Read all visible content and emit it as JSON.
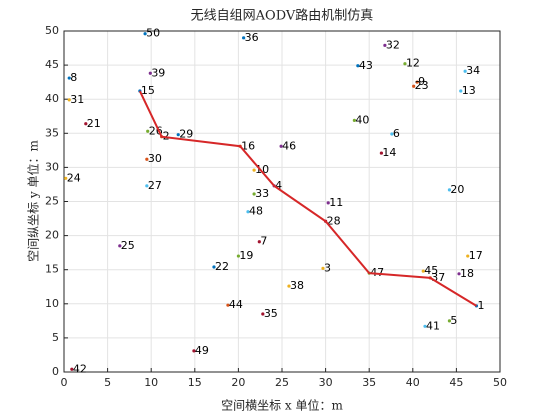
{
  "chart_data": {
    "type": "scatter",
    "title": "无线自组网AODV路由机制仿真",
    "x_label": "空间横坐标 x  单位：m",
    "y_label": "空间纵坐标 y  单位：m",
    "xlim": [
      0,
      50
    ],
    "ylim": [
      0,
      50
    ],
    "xticks": [
      0,
      5,
      10,
      15,
      20,
      25,
      30,
      35,
      40,
      45,
      50
    ],
    "yticks": [
      0,
      5,
      10,
      15,
      20,
      25,
      30,
      35,
      40,
      45,
      50
    ],
    "grid": true,
    "nodes": {
      "labels": [
        "1",
        "2",
        "3",
        "4",
        "5",
        "6",
        "7",
        "8",
        "9",
        "10",
        "11",
        "12",
        "13",
        "14",
        "15",
        "16",
        "17",
        "18",
        "19",
        "20",
        "21",
        "22",
        "23",
        "24",
        "25",
        "26",
        "27",
        "28",
        "29",
        "30",
        "31",
        "32",
        "33",
        "34",
        "35",
        "36",
        "37",
        "38",
        "39",
        "40",
        "41",
        "42",
        "43",
        "44",
        "45",
        "46",
        "47",
        "48",
        "49",
        "50"
      ],
      "x": [
        47.3,
        11.2,
        29.7,
        24.1,
        44.2,
        37.6,
        22.4,
        0.6,
        40.5,
        21.8,
        30.3,
        39.1,
        45.5,
        36.4,
        8.7,
        20.2,
        46.3,
        45.3,
        20.0,
        44.2,
        2.5,
        17.2,
        40.1,
        0.2,
        6.4,
        9.6,
        9.5,
        30.0,
        13.1,
        9.5,
        0.6,
        36.8,
        21.8,
        46.0,
        22.8,
        20.6,
        42.0,
        25.8,
        9.9,
        33.3,
        41.4,
        0.9,
        33.7,
        18.8,
        41.2,
        24.9,
        35.0,
        21.1,
        14.9,
        9.3
      ],
      "values": [
        9.7,
        34.5,
        15.2,
        27.3,
        7.5,
        34.9,
        19.1,
        43.1,
        42.5,
        29.6,
        24.8,
        45.2,
        41.2,
        32.1,
        41.2,
        33.1,
        17.0,
        14.4,
        17.0,
        26.7,
        36.4,
        15.4,
        41.9,
        28.4,
        18.5,
        35.3,
        27.3,
        22.1,
        34.8,
        31.2,
        39.9,
        47.9,
        26.1,
        44.1,
        8.5,
        49.0,
        13.8,
        12.6,
        43.8,
        36.9,
        6.7,
        0.4,
        44.9,
        9.8,
        14.8,
        33.1,
        14.5,
        23.5,
        3.1,
        49.6
      ],
      "marker_colors": [
        "#0072bd",
        "#d95319",
        "#edb120",
        "#7e2f8e",
        "#77ac30",
        "#4dbeee",
        "#a2142f"
      ]
    },
    "route": {
      "color": "#d62728",
      "nodes": [
        "15",
        "2",
        "16",
        "4",
        "28",
        "47",
        "37",
        "1"
      ]
    }
  }
}
